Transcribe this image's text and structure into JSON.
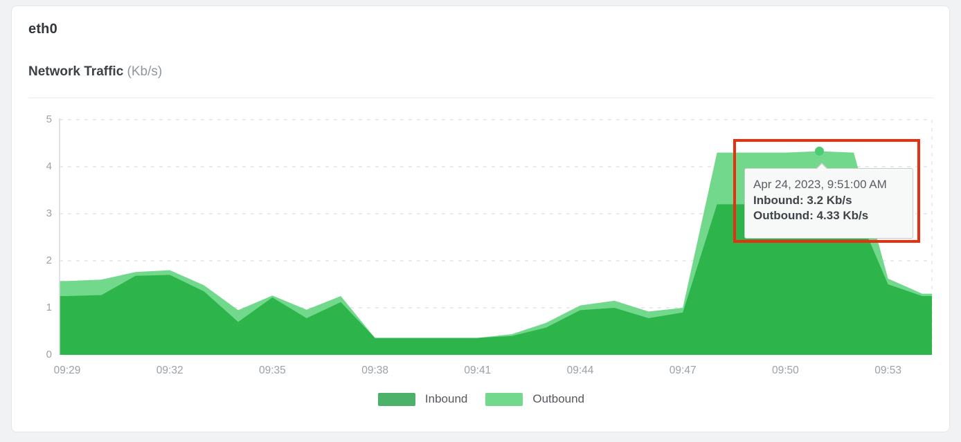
{
  "page": {
    "background": "#f0f2f4"
  },
  "card": {
    "title": "eth0",
    "subtitle": "Network Traffic",
    "subtitle_unit": "(Kb/s)"
  },
  "chart_data": {
    "type": "area",
    "title": "Network Traffic (Kb/s)",
    "ylabel": "Kb/s",
    "xlabel": "",
    "ylim": [
      0,
      5
    ],
    "y_ticks": [
      0,
      1,
      2,
      3,
      4,
      5
    ],
    "x_tick_every": 3,
    "x_tick_labels": [
      "09:29",
      "09:32",
      "09:35",
      "09:38",
      "09:41",
      "09:44",
      "09:47",
      "09:50",
      "09:53"
    ],
    "grid": "horizontal-dashed",
    "legend_position": "bottom",
    "x": [
      "09:29",
      "09:30",
      "09:31",
      "09:32",
      "09:33",
      "09:34",
      "09:35",
      "09:36",
      "09:37",
      "09:38",
      "09:39",
      "09:40",
      "09:41",
      "09:42",
      "09:43",
      "09:44",
      "09:45",
      "09:46",
      "09:47",
      "09:48",
      "09:49",
      "09:50",
      "09:51",
      "09:52",
      "09:53",
      "09:54"
    ],
    "series": [
      {
        "name": "Outbound",
        "fill_color": "#72d98c",
        "legend_color": "#72d98c",
        "values": [
          1.57,
          1.6,
          1.76,
          1.8,
          1.48,
          0.95,
          1.26,
          0.96,
          1.25,
          0.36,
          0.36,
          0.36,
          0.36,
          0.44,
          0.68,
          1.05,
          1.15,
          0.92,
          1.0,
          4.3,
          4.3,
          4.3,
          4.33,
          4.3,
          1.62,
          1.3
        ]
      },
      {
        "name": "Inbound",
        "fill_color": "#2db44a",
        "legend_color": "#4cb26a",
        "values": [
          1.25,
          1.27,
          1.68,
          1.7,
          1.35,
          0.7,
          1.22,
          0.78,
          1.12,
          0.36,
          0.36,
          0.36,
          0.36,
          0.4,
          0.58,
          0.95,
          1.0,
          0.78,
          0.9,
          3.2,
          3.2,
          3.2,
          3.2,
          3.2,
          1.5,
          1.25
        ]
      }
    ],
    "hover_point": {
      "time": "09:51",
      "index": 22,
      "series": "Outbound",
      "value": 4.33,
      "dot_color": "#4ecb74"
    },
    "axis_color": "#d6dade",
    "grid_color": "#e0e3e6"
  },
  "tooltip": {
    "title": "Apr 24, 2023, 9:51:00 AM",
    "inbound_line": "Inbound: 3.2 Kb/s",
    "outbound_line": "Outbound: 4.33 Kb/s"
  },
  "legend": {
    "inbound": "Inbound",
    "outbound": "Outbound"
  },
  "annotation": {
    "color": "#e6300f"
  }
}
